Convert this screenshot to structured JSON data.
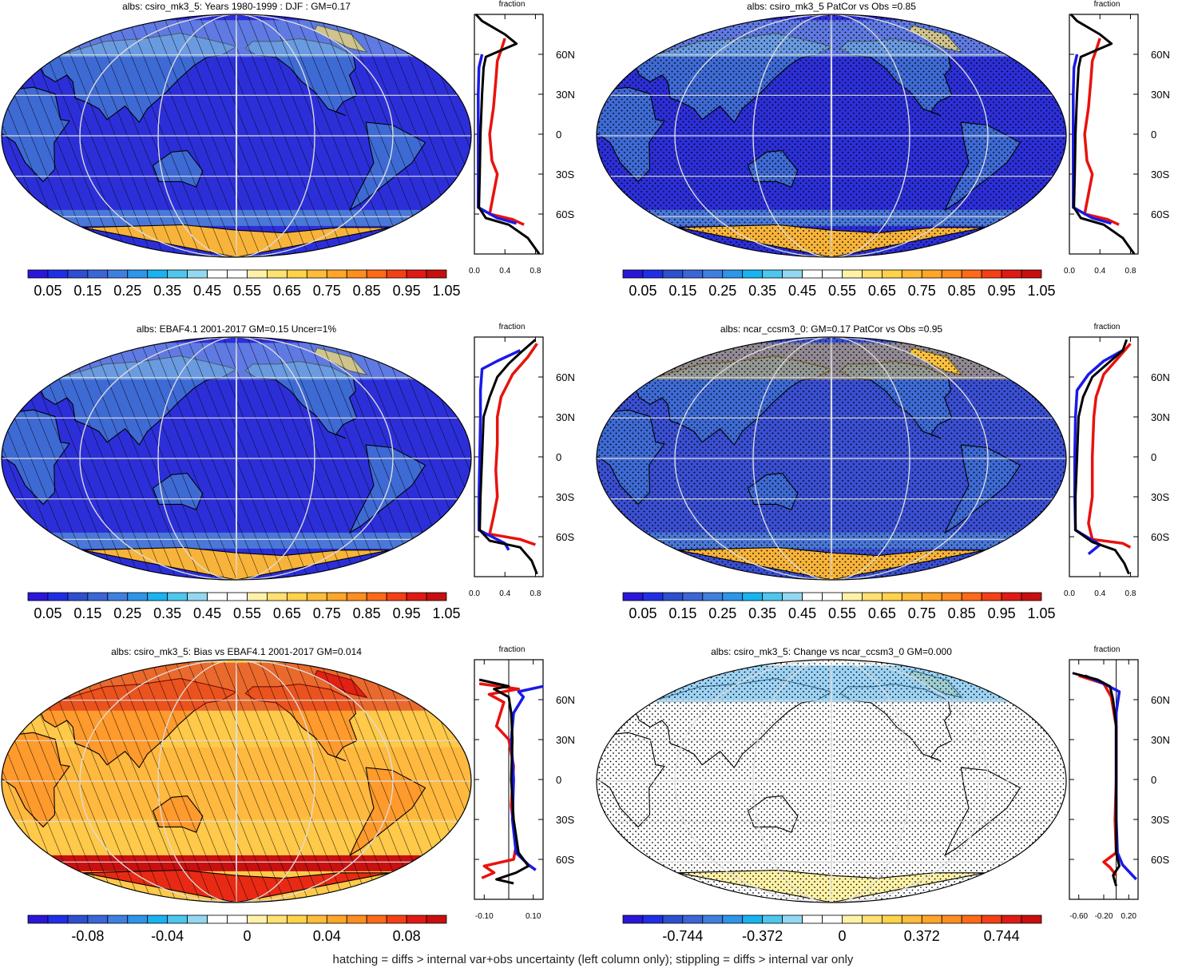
{
  "palette": {
    "full": [
      "#2a16d8",
      "#1f2fe6",
      "#2d4fd0",
      "#3a66d8",
      "#3f7fe0",
      "#2d95ea",
      "#18b3f0",
      "#4ec6ee",
      "#93d8f0",
      "#ffffff",
      "#ffffff",
      "#fff2a8",
      "#ffe070",
      "#ffd24a",
      "#ffbc3a",
      "#ffa528",
      "#ff8e20",
      "#ff6a18",
      "#f54016",
      "#e01a14",
      "#c80f0f"
    ],
    "ocean": "#2c2fd8",
    "land": "#3e6ad4",
    "ice": "#f8b43a",
    "curve_model": "#000000",
    "curve_obs": "#e8120e",
    "curve_other": "#1a1ae6"
  },
  "footnote": "hatching = diffs > internal var+obs uncertainty (left column only); stippling = diffs > internal var only",
  "panels": [
    {
      "id": "p1",
      "title": "albs: csiro_mk3_5: Years 1980-1999 : DJF : GM=0.17",
      "style": "albedo",
      "pattern": "hatch",
      "colorbar_labels": [
        "0.05",
        "0.15",
        "0.25",
        "0.35",
        "0.45",
        "0.55",
        "0.65",
        "0.75",
        "0.85",
        "0.95",
        "1.05"
      ],
      "profile": {
        "title": "fraction",
        "x_ticks": [
          "0.0",
          "0.4",
          "0.8"
        ],
        "x_range": [
          0,
          0.9
        ],
        "y_labels": [
          "60N",
          "30N",
          "0",
          "30S",
          "60S"
        ],
        "curves": {
          "black": [
            [
              0.02,
              90
            ],
            [
              0.1,
              85
            ],
            [
              0.4,
              75
            ],
            [
              0.55,
              68
            ],
            [
              0.35,
              63
            ],
            [
              0.15,
              58
            ],
            [
              0.12,
              50
            ],
            [
              0.1,
              30
            ],
            [
              0.08,
              0
            ],
            [
              0.07,
              -30
            ],
            [
              0.06,
              -55
            ],
            [
              0.15,
              -63
            ],
            [
              0.45,
              -68
            ],
            [
              0.7,
              -78
            ],
            [
              0.85,
              -90
            ]
          ],
          "red": [
            [
              0.4,
              72
            ],
            [
              0.35,
              63
            ],
            [
              0.3,
              55
            ],
            [
              0.28,
              40
            ],
            [
              0.25,
              20
            ],
            [
              0.2,
              0
            ],
            [
              0.23,
              -20
            ],
            [
              0.3,
              -30
            ],
            [
              0.25,
              -45
            ],
            [
              0.2,
              -60
            ],
            [
              0.5,
              -64
            ],
            [
              0.65,
              -68
            ]
          ],
          "blue": [
            [
              0.1,
              60
            ],
            [
              0.06,
              50
            ],
            [
              0.05,
              30
            ],
            [
              0.05,
              0
            ],
            [
              0.05,
              -30
            ],
            [
              0.05,
              -55
            ],
            [
              0.3,
              -63
            ],
            [
              0.55,
              -67
            ]
          ]
        }
      }
    },
    {
      "id": "p2",
      "title": "albs: csiro_mk3_5 PatCor vs Obs =0.85",
      "style": "albedo",
      "pattern": "stipple",
      "colorbar_labels": [
        "0.05",
        "0.15",
        "0.25",
        "0.35",
        "0.45",
        "0.55",
        "0.65",
        "0.75",
        "0.85",
        "0.95",
        "1.05"
      ],
      "profile": {
        "title": "fraction",
        "x_ticks": [
          "0.0",
          "0.4",
          "0.8"
        ],
        "x_range": [
          0,
          0.9
        ],
        "y_labels": [
          "60N",
          "30N",
          "0",
          "30S",
          "60S"
        ],
        "curves": {
          "black": [
            [
              0.02,
              90
            ],
            [
              0.1,
              85
            ],
            [
              0.4,
              75
            ],
            [
              0.55,
              68
            ],
            [
              0.35,
              63
            ],
            [
              0.15,
              58
            ],
            [
              0.12,
              50
            ],
            [
              0.1,
              30
            ],
            [
              0.08,
              0
            ],
            [
              0.07,
              -30
            ],
            [
              0.06,
              -55
            ],
            [
              0.15,
              -63
            ],
            [
              0.45,
              -68
            ],
            [
              0.7,
              -78
            ],
            [
              0.85,
              -90
            ]
          ],
          "red": [
            [
              0.4,
              72
            ],
            [
              0.35,
              63
            ],
            [
              0.3,
              55
            ],
            [
              0.28,
              40
            ],
            [
              0.25,
              20
            ],
            [
              0.2,
              0
            ],
            [
              0.23,
              -20
            ],
            [
              0.3,
              -30
            ],
            [
              0.25,
              -45
            ],
            [
              0.2,
              -60
            ],
            [
              0.5,
              -64
            ],
            [
              0.65,
              -68
            ]
          ],
          "blue": [
            [
              0.1,
              60
            ],
            [
              0.06,
              50
            ],
            [
              0.05,
              30
            ],
            [
              0.05,
              0
            ],
            [
              0.05,
              -30
            ],
            [
              0.05,
              -55
            ],
            [
              0.3,
              -63
            ],
            [
              0.55,
              -67
            ]
          ]
        }
      }
    },
    {
      "id": "p3",
      "title": "albs: EBAF4.1 2001-2017 GM=0.15 Uncer=1%",
      "style": "albedo",
      "pattern": "hatch",
      "colorbar_labels": [
        "0.05",
        "0.15",
        "0.25",
        "0.35",
        "0.45",
        "0.55",
        "0.65",
        "0.75",
        "0.85",
        "0.95",
        "1.05"
      ],
      "profile": {
        "title": "fraction",
        "x_ticks": [
          "0.0",
          "0.4",
          "0.8"
        ],
        "x_range": [
          0,
          0.9
        ],
        "y_labels": [
          "60N",
          "30N",
          "0",
          "30S",
          "60S"
        ],
        "curves": {
          "black": [
            [
              0.8,
              88
            ],
            [
              0.6,
              78
            ],
            [
              0.45,
              70
            ],
            [
              0.3,
              60
            ],
            [
              0.2,
              45
            ],
            [
              0.12,
              30
            ],
            [
              0.1,
              0
            ],
            [
              0.08,
              -30
            ],
            [
              0.07,
              -55
            ],
            [
              0.2,
              -63
            ],
            [
              0.6,
              -68
            ],
            [
              0.75,
              -78
            ],
            [
              0.82,
              -88
            ]
          ],
          "red": [
            [
              0.82,
              85
            ],
            [
              0.7,
              75
            ],
            [
              0.5,
              62
            ],
            [
              0.35,
              45
            ],
            [
              0.3,
              30
            ],
            [
              0.3,
              10
            ],
            [
              0.28,
              -10
            ],
            [
              0.3,
              -30
            ],
            [
              0.25,
              -45
            ],
            [
              0.2,
              -58
            ],
            [
              0.6,
              -62
            ],
            [
              0.8,
              -66
            ]
          ],
          "blue": [
            [
              0.6,
              80
            ],
            [
              0.3,
              72
            ],
            [
              0.1,
              66
            ],
            [
              0.08,
              50
            ],
            [
              0.08,
              30
            ],
            [
              0.07,
              0
            ],
            [
              0.06,
              -30
            ],
            [
              0.06,
              -55
            ],
            [
              0.4,
              -65
            ],
            [
              0.45,
              -70
            ]
          ]
        }
      }
    },
    {
      "id": "p4",
      "title": "albs: ncar_ccsm3_0: GM=0.17 PatCor vs Obs =0.95",
      "style": "albedo_ncar",
      "pattern": "stipple",
      "colorbar_labels": [
        "0.05",
        "0.15",
        "0.25",
        "0.35",
        "0.45",
        "0.55",
        "0.65",
        "0.75",
        "0.85",
        "0.95",
        "1.05"
      ],
      "profile": {
        "title": "fraction",
        "x_ticks": [
          "0.0",
          "0.4",
          "0.8"
        ],
        "x_range": [
          0,
          0.9
        ],
        "y_labels": [
          "60N",
          "30N",
          "0",
          "30S",
          "60S"
        ],
        "curves": {
          "black": [
            [
              0.75,
              88
            ],
            [
              0.7,
              80
            ],
            [
              0.5,
              70
            ],
            [
              0.3,
              60
            ],
            [
              0.18,
              45
            ],
            [
              0.12,
              30
            ],
            [
              0.1,
              0
            ],
            [
              0.08,
              -30
            ],
            [
              0.08,
              -55
            ],
            [
              0.3,
              -64
            ],
            [
              0.6,
              -70
            ],
            [
              0.72,
              -80
            ],
            [
              0.78,
              -88
            ]
          ],
          "red": [
            [
              0.8,
              85
            ],
            [
              0.65,
              75
            ],
            [
              0.45,
              62
            ],
            [
              0.35,
              45
            ],
            [
              0.32,
              30
            ],
            [
              0.3,
              0
            ],
            [
              0.3,
              -30
            ],
            [
              0.25,
              -50
            ],
            [
              0.3,
              -62
            ],
            [
              0.7,
              -65
            ],
            [
              0.8,
              -68
            ]
          ],
          "blue": [
            [
              0.7,
              80
            ],
            [
              0.45,
              72
            ],
            [
              0.25,
              62
            ],
            [
              0.1,
              50
            ],
            [
              0.08,
              30
            ],
            [
              0.07,
              0
            ],
            [
              0.07,
              -30
            ],
            [
              0.08,
              -55
            ],
            [
              0.4,
              -66
            ],
            [
              0.25,
              -73
            ]
          ]
        }
      }
    },
    {
      "id": "p5",
      "title": "albs: csiro_mk3_5: Bias vs EBAF4.1 2001-2017 GM=0.014",
      "style": "bias",
      "pattern": "hatch",
      "colorbar_labels": [
        "-0.08",
        "-0.04",
        "0",
        "0.04",
        "0.08"
      ],
      "profile": {
        "title": "fraction",
        "x_ticks": [
          "-0.10",
          "0.10"
        ],
        "x_range": [
          -0.14,
          0.14
        ],
        "zero_line": 0,
        "y_labels": [
          "60N",
          "30N",
          "0",
          "30S",
          "60S"
        ],
        "curves": {
          "black": [
            [
              -0.12,
              75
            ],
            [
              0.0,
              70
            ],
            [
              -0.06,
              68
            ],
            [
              0.0,
              62
            ],
            [
              0.01,
              50
            ],
            [
              0.015,
              30
            ],
            [
              0.01,
              0
            ],
            [
              0.02,
              -30
            ],
            [
              0.04,
              -55
            ],
            [
              0.08,
              -65
            ],
            [
              0.03,
              -70
            ],
            [
              -0.05,
              -75
            ],
            [
              0.02,
              -78
            ]
          ],
          "red": [
            [
              -0.12,
              72
            ],
            [
              0.04,
              68
            ],
            [
              -0.08,
              64
            ],
            [
              -0.02,
              58
            ],
            [
              -0.05,
              40
            ],
            [
              0.0,
              30
            ],
            [
              0.02,
              10
            ],
            [
              0.01,
              -20
            ],
            [
              0.03,
              -50
            ],
            [
              0.02,
              -60
            ],
            [
              -0.1,
              -65
            ],
            [
              -0.06,
              -70
            ],
            [
              -0.11,
              -74
            ]
          ],
          "blue": [
            [
              0.14,
              70
            ],
            [
              0.04,
              66
            ],
            [
              0.06,
              62
            ],
            [
              0.02,
              50
            ],
            [
              0.01,
              30
            ],
            [
              0.02,
              0
            ],
            [
              0.015,
              -30
            ],
            [
              0.03,
              -55
            ],
            [
              0.08,
              -64
            ],
            [
              0.11,
              -68
            ]
          ]
        }
      }
    },
    {
      "id": "p6",
      "title": "albs: csiro_mk3_5: Change vs ncar_ccsm3_0 GM=0.000",
      "style": "change",
      "pattern": "stipple",
      "colorbar_labels": [
        "-0.744",
        "-0.372",
        "0",
        "0.372",
        "0.744"
      ],
      "profile": {
        "title": "fraction",
        "x_ticks": [
          "-0.60",
          "-0.20",
          "0.20"
        ],
        "x_range": [
          -0.75,
          0.35
        ],
        "zero_line": 0,
        "y_labels": [
          "60N",
          "30N",
          "0",
          "30S",
          "60S"
        ],
        "curves": {
          "black": [
            [
              -0.7,
              80
            ],
            [
              -0.3,
              75
            ],
            [
              -0.1,
              70
            ],
            [
              -0.05,
              60
            ],
            [
              0.0,
              40
            ],
            [
              0.0,
              0
            ],
            [
              0.0,
              -30
            ],
            [
              0.0,
              -55
            ],
            [
              0.05,
              -65
            ],
            [
              -0.05,
              -72
            ],
            [
              0.0,
              -80
            ]
          ],
          "red": [
            [
              -0.6,
              78
            ],
            [
              -0.2,
              72
            ],
            [
              -0.08,
              62
            ],
            [
              0.0,
              40
            ],
            [
              0.0,
              0
            ],
            [
              -0.02,
              -30
            ],
            [
              0.0,
              -55
            ],
            [
              -0.2,
              -62
            ],
            [
              -0.1,
              -66
            ],
            [
              0.0,
              -72
            ]
          ],
          "blue": [
            [
              -0.5,
              78
            ],
            [
              -0.2,
              72
            ],
            [
              0.05,
              66
            ],
            [
              0.0,
              50
            ],
            [
              0.0,
              0
            ],
            [
              0.0,
              -30
            ],
            [
              0.02,
              -55
            ],
            [
              0.1,
              -64
            ],
            [
              0.32,
              -75
            ]
          ]
        }
      }
    }
  ]
}
